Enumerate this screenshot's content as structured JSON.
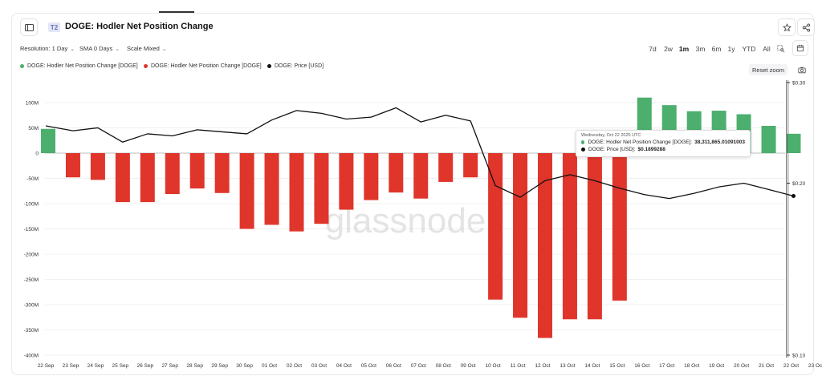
{
  "header": {
    "badge": "T2",
    "title": "DOGE: Hodler Net Position Change",
    "sidebar_toggle_icon": "sidebar-toggle-icon",
    "star_icon": "star-icon",
    "share_icon": "share-icon"
  },
  "controls": {
    "resolution": "Resolution: 1 Day",
    "sma": "SMA 0 Days",
    "scale": "Scale Mixed",
    "ranges": [
      "7d",
      "2w",
      "1m",
      "3m",
      "6m",
      "1y",
      "YTD",
      "All"
    ],
    "active_range": "1m",
    "zoom_select_icon": "zoom-select-icon",
    "calendar_icon": "calendar-icon",
    "reset_zoom": "Reset zoom",
    "camera_icon": "camera-icon"
  },
  "legend": [
    {
      "label": "DOGE: Hodler Net Position Change [DOGE]",
      "color": "#4caf6e"
    },
    {
      "label": "DOGE: Hodler Net Position Change [DOGE]",
      "color": "#e0352b"
    },
    {
      "label": "DOGE: Price [USD]",
      "color": "#111111"
    }
  ],
  "watermark": "glassnode",
  "tooltip": {
    "date": "Wednesday, Oct 22 2025 UTC",
    "rows": [
      {
        "label": "DOGE: Hodler Net Position Change [DOGE]:",
        "value": "38,311,865.01091003",
        "color": "#4caf6e"
      },
      {
        "label": "DOGE: Price [USD]:",
        "value": "$0.1899288",
        "color": "#111111"
      }
    ]
  },
  "chart_data": {
    "type": "bar",
    "title": "DOGE: Hodler Net Position Change",
    "categories": [
      "22 Sep",
      "23 Sep",
      "24 Sep",
      "25 Sep",
      "26 Sep",
      "27 Sep",
      "28 Sep",
      "29 Sep",
      "30 Sep",
      "01 Oct",
      "02 Oct",
      "03 Oct",
      "04 Oct",
      "05 Oct",
      "06 Oct",
      "07 Oct",
      "08 Oct",
      "09 Oct",
      "10 Oct",
      "11 Oct",
      "12 Oct",
      "13 Oct",
      "14 Oct",
      "15 Oct",
      "16 Oct",
      "17 Oct",
      "18 Oct",
      "19 Oct",
      "20 Oct",
      "21 Oct",
      "22 Oct"
    ],
    "x_tick_labels": [
      "22 Sep",
      "23 Sep",
      "24 Sep",
      "25 Sep",
      "26 Sep",
      "27 Sep",
      "28 Sep",
      "29 Sep",
      "30 Sep",
      "01 Oct",
      "02 Oct",
      "03 Oct",
      "04 Oct",
      "05 Oct",
      "06 Oct",
      "07 Oct",
      "08 Oct",
      "09 Oct",
      "10 Oct",
      "11 Oct",
      "12 Oct",
      "13 Oct",
      "14 Oct",
      "15 Oct",
      "16 Oct",
      "17 Oct",
      "18 Oct",
      "19 Oct",
      "20 Oct",
      "21 Oct",
      "22 Oct",
      "23 Oct"
    ],
    "series": [
      {
        "name": "DOGE: Hodler Net Position Change [DOGE]",
        "axis": "left",
        "unit": "DOGE",
        "positive_color": "#4caf6e",
        "negative_color": "#e0352b",
        "values": [
          48000000,
          -48000000,
          -53000000,
          -97000000,
          -97000000,
          -81000000,
          -70000000,
          -79000000,
          -150000000,
          -142000000,
          -155000000,
          -140000000,
          -112000000,
          -93000000,
          -78000000,
          -90000000,
          -57000000,
          -48000000,
          -290000000,
          -326000000,
          -366000000,
          -329000000,
          -329000000,
          -292000000,
          110000000,
          95000000,
          83000000,
          84000000,
          77000000,
          54000000,
          38311865.01091003
        ]
      },
      {
        "name": "DOGE: Price [USD]",
        "axis": "right",
        "type": "line",
        "color": "#111111",
        "values": [
          0.252,
          0.247,
          0.25,
          0.236,
          0.244,
          0.242,
          0.248,
          0.246,
          0.244,
          0.258,
          0.268,
          0.265,
          0.259,
          0.261,
          0.271,
          0.256,
          0.263,
          0.257,
          0.198,
          0.189,
          0.202,
          0.207,
          0.202,
          0.196,
          0.191,
          0.188,
          0.192,
          0.197,
          0.2,
          0.195,
          0.1899288
        ]
      }
    ],
    "y_left": {
      "ticks": [
        100000000,
        50000000,
        0,
        -50000000,
        -100000000,
        -150000000,
        -200000000,
        -250000000,
        -300000000,
        -350000000,
        -400000000
      ],
      "tick_labels": [
        "100M",
        "50M",
        "0",
        "-50M",
        "-100M",
        "-150M",
        "-200M",
        "-250M",
        "-300M",
        "-350M",
        "-400M"
      ],
      "range": [
        -400000000,
        130000000
      ]
    },
    "y_right": {
      "scale": "log",
      "ticks": [
        0.3,
        0.2,
        0.1
      ],
      "tick_labels": [
        "$0.30",
        "$0.20",
        "$0.10"
      ]
    },
    "grid": true,
    "legend_position": "top-left"
  }
}
